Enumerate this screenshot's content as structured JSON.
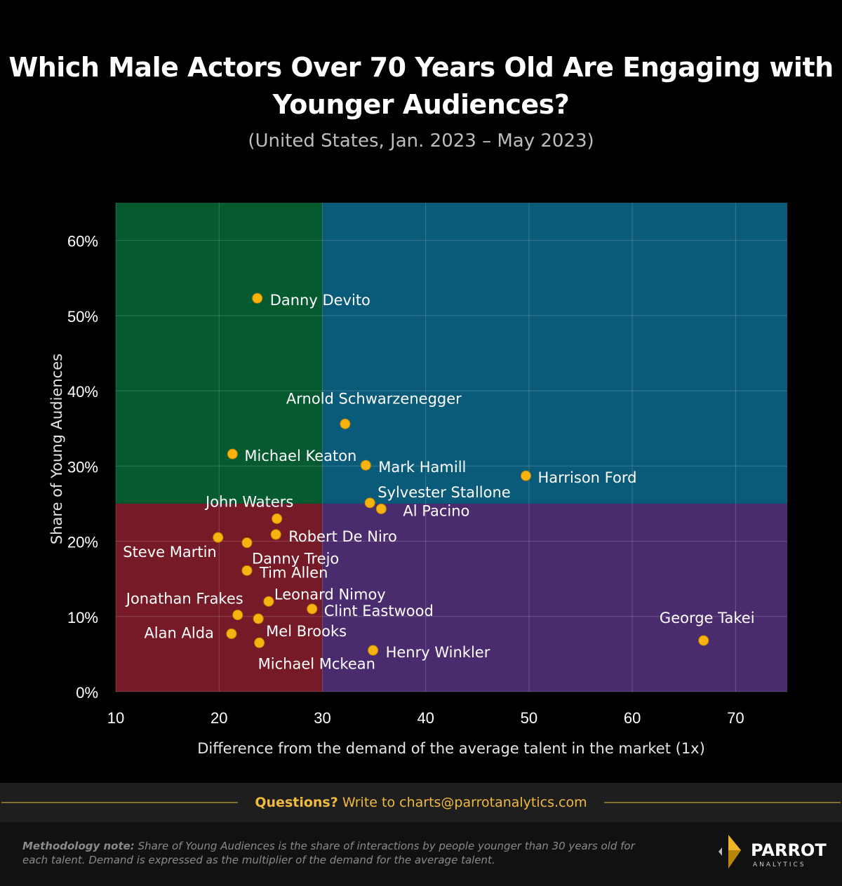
{
  "header": {
    "title": "Which Male Actors Over 70 Years Old Are Engaging with Younger Audiences?",
    "subtitle": "(United States, Jan. 2023 – May 2023)"
  },
  "chart_data": {
    "type": "scatter",
    "title": "Which Male Actors Over 70 Years Old Are Engaging with Younger Audiences?",
    "subtitle": "(United States, Jan. 2023 – May 2023)",
    "xlabel": "Difference from the demand of the average talent in the market (1x)",
    "ylabel": "Share of Young Audiences",
    "xlim": [
      10,
      75
    ],
    "ylim": [
      0,
      65
    ],
    "xticks": [
      10,
      20,
      30,
      40,
      50,
      60,
      70
    ],
    "yticks": [
      "0%",
      "10%",
      "20%",
      "30%",
      "40%",
      "50%",
      "60%"
    ],
    "ytick_values": [
      0,
      10,
      20,
      30,
      40,
      50,
      60
    ],
    "grid": true,
    "quadrant_split": {
      "x": 30,
      "y": 25
    },
    "quadrant_colors": {
      "top_left": "#065a2f",
      "top_right": "#0a5b7a",
      "bottom_left": "#761a27",
      "bottom_right": "#4a2c6e"
    },
    "point_color": "#f7b30f",
    "points": [
      {
        "name": "Danny Devito",
        "x": 23.7,
        "y": 52.3
      },
      {
        "name": "Arnold Schwarzenegger",
        "x": 32.2,
        "y": 35.6
      },
      {
        "name": "Michael Keaton",
        "x": 21.3,
        "y": 31.6
      },
      {
        "name": "Mark Hamill",
        "x": 34.2,
        "y": 30.1
      },
      {
        "name": "Harrison Ford",
        "x": 49.7,
        "y": 28.7
      },
      {
        "name": "Sylvester Stallone",
        "x": 34.6,
        "y": 25.1
      },
      {
        "name": "Al Pacino",
        "x": 35.7,
        "y": 24.3
      },
      {
        "name": "John Waters",
        "x": 25.6,
        "y": 23.0
      },
      {
        "name": "Robert De Niro",
        "x": 25.5,
        "y": 20.9
      },
      {
        "name": "Steve Martin",
        "x": 19.9,
        "y": 20.5
      },
      {
        "name": "Danny Trejo",
        "x": 22.7,
        "y": 19.8
      },
      {
        "name": "Tim Allen",
        "x": 22.7,
        "y": 16.1
      },
      {
        "name": "Leonard Nimoy",
        "x": 24.8,
        "y": 12.0
      },
      {
        "name": "Clint Eastwood",
        "x": 29.0,
        "y": 11.0
      },
      {
        "name": "Jonathan Frakes",
        "x": 21.8,
        "y": 10.2
      },
      {
        "name": "Mel Brooks",
        "x": 23.8,
        "y": 9.7
      },
      {
        "name": "Alan Alda",
        "x": 21.2,
        "y": 7.7
      },
      {
        "name": "Michael Mckean",
        "x": 23.9,
        "y": 6.5
      },
      {
        "name": "Henry Winkler",
        "x": 34.9,
        "y": 5.5
      },
      {
        "name": "George Takei",
        "x": 66.9,
        "y": 6.8
      }
    ]
  },
  "footer": {
    "questions_label": "Questions?",
    "questions_text": "Write to charts@parrotanalytics.com",
    "method_label": "Methodology note:",
    "method_text": "Share of Young Audiences is the share of interactions by people younger than 30 years old for each talent. Demand is expressed as the multiplier of the demand for the average talent.",
    "logo_name": "PARROT",
    "logo_sub": "ANALYTICS"
  }
}
